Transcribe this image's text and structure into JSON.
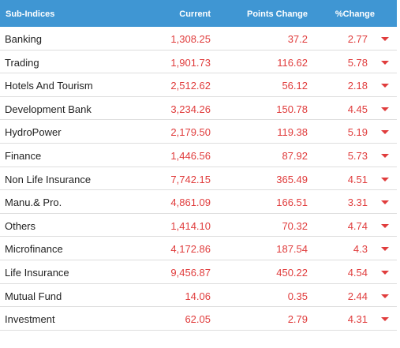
{
  "header": {
    "name": "Sub-Indices",
    "current": "Current",
    "points_change": "Points Change",
    "percent_change": "%Change"
  },
  "colors": {
    "header_bg": "#3f96d3",
    "negative": "#e03c3c"
  },
  "rows": [
    {
      "name": "Banking",
      "current": "1,308.25",
      "points": "37.2",
      "percent": "2.77",
      "direction": "down"
    },
    {
      "name": "Trading",
      "current": "1,901.73",
      "points": "116.62",
      "percent": "5.78",
      "direction": "down"
    },
    {
      "name": "Hotels And Tourism",
      "current": "2,512.62",
      "points": "56.12",
      "percent": "2.18",
      "direction": "down"
    },
    {
      "name": "Development Bank",
      "current": "3,234.26",
      "points": "150.78",
      "percent": "4.45",
      "direction": "down"
    },
    {
      "name": "HydroPower",
      "current": "2,179.50",
      "points": "119.38",
      "percent": "5.19",
      "direction": "down"
    },
    {
      "name": "Finance",
      "current": "1,446.56",
      "points": "87.92",
      "percent": "5.73",
      "direction": "down"
    },
    {
      "name": "Non Life Insurance",
      "current": "7,742.15",
      "points": "365.49",
      "percent": "4.51",
      "direction": "down"
    },
    {
      "name": "Manu.& Pro.",
      "current": "4,861.09",
      "points": "166.51",
      "percent": "3.31",
      "direction": "down"
    },
    {
      "name": "Others",
      "current": "1,414.10",
      "points": "70.32",
      "percent": "4.74",
      "direction": "down"
    },
    {
      "name": "Microfinance",
      "current": "4,172.86",
      "points": "187.54",
      "percent": "4.3",
      "direction": "down"
    },
    {
      "name": "Life Insurance",
      "current": "9,456.87",
      "points": "450.22",
      "percent": "4.54",
      "direction": "down"
    },
    {
      "name": "Mutual Fund",
      "current": "14.06",
      "points": "0.35",
      "percent": "2.44",
      "direction": "down"
    },
    {
      "name": "Investment",
      "current": "62.05",
      "points": "2.79",
      "percent": "4.31",
      "direction": "down"
    }
  ]
}
